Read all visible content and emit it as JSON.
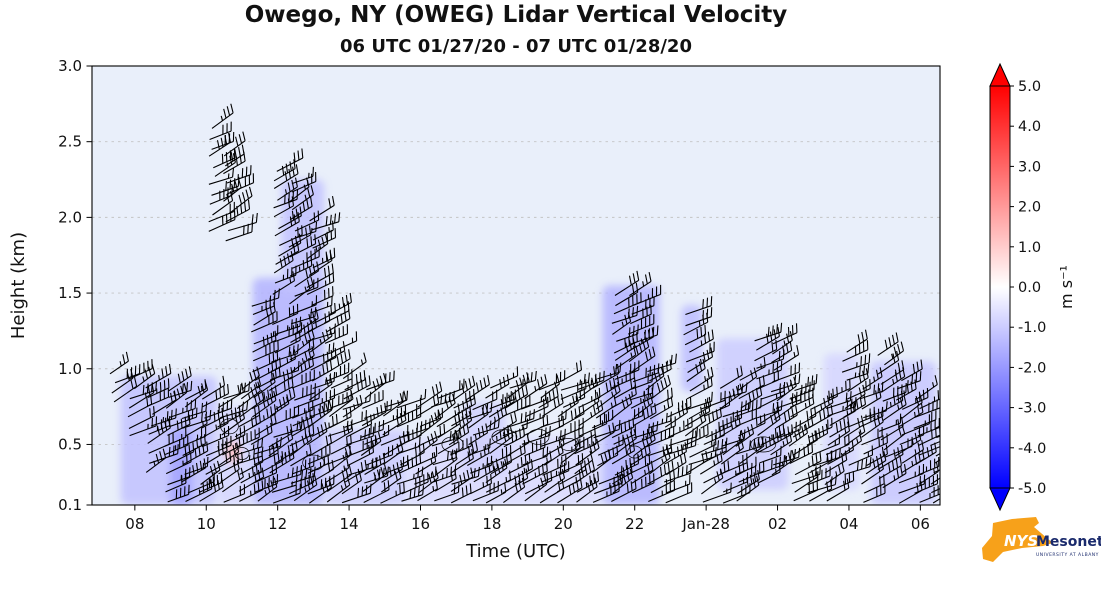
{
  "title": "Owego, NY (OWEG) Lidar Vertical Velocity",
  "subtitle": "06 UTC 01/27/20 - 07 UTC 01/28/20",
  "colors": {
    "plot_bg": "#e9effa",
    "barb": "#000000",
    "grid": "#c4c4c4",
    "frame": "#000000",
    "colorbar_max": "#ff0000",
    "colorbar_mid": "#ffffff",
    "colorbar_min": "#0000ff",
    "logo_orange": "#f7a11a",
    "logo_navy": "#1a2a6c"
  },
  "chart_data": {
    "type": "heatmap",
    "title": "Owego, NY (OWEG) Lidar Vertical Velocity",
    "subtitle": "06 UTC 01/27/20 - 07 UTC 01/28/20",
    "xlabel": "Time (UTC)",
    "ylabel": "Height (km)",
    "x_range_hours": [
      6.8,
      30.55
    ],
    "y_range": [
      0.1,
      3.0
    ],
    "x_ticks": [
      {
        "hour": 8,
        "label": "08"
      },
      {
        "hour": 10,
        "label": "10"
      },
      {
        "hour": 12,
        "label": "12"
      },
      {
        "hour": 14,
        "label": "14"
      },
      {
        "hour": 16,
        "label": "16"
      },
      {
        "hour": 18,
        "label": "18"
      },
      {
        "hour": 20,
        "label": "20"
      },
      {
        "hour": 22,
        "label": "22"
      },
      {
        "hour": 24,
        "label": "Jan-28"
      },
      {
        "hour": 26,
        "label": "02"
      },
      {
        "hour": 28,
        "label": "04"
      },
      {
        "hour": 30,
        "label": "06"
      }
    ],
    "y_ticks": [
      {
        "value": 3.0,
        "label": "3.0"
      },
      {
        "value": 2.5,
        "label": "2.5"
      },
      {
        "value": 2.0,
        "label": "2.0"
      },
      {
        "value": 1.5,
        "label": "1.5"
      },
      {
        "value": 1.0,
        "label": "1.0"
      },
      {
        "value": 0.5,
        "label": "0.5"
      },
      {
        "value": 0.1,
        "label": "0.1"
      }
    ],
    "colorbar": {
      "label": "m s⁻¹",
      "min": -5.0,
      "max": 5.0,
      "ticks": [
        {
          "value": 5.0,
          "label": "5.0"
        },
        {
          "value": 4.0,
          "label": "4.0"
        },
        {
          "value": 3.0,
          "label": "3.0"
        },
        {
          "value": 2.0,
          "label": "2.0"
        },
        {
          "value": 1.0,
          "label": "1.0"
        },
        {
          "value": 0.0,
          "label": "0.0"
        },
        {
          "value": -1.0,
          "label": "-1.0"
        },
        {
          "value": -2.0,
          "label": "-2.0"
        },
        {
          "value": -3.0,
          "label": "-3.0"
        },
        {
          "value": -4.0,
          "label": "-4.0"
        },
        {
          "value": -5.0,
          "label": "-5.0"
        }
      ]
    },
    "shading_regions": [
      {
        "t0": 7.6,
        "t1": 10.3,
        "h0": 0.1,
        "h1": 0.95,
        "v": -1.2
      },
      {
        "t0": 9.0,
        "t1": 9.6,
        "h0": 0.1,
        "h1": 0.6,
        "v": -1.8
      },
      {
        "t0": 10.3,
        "t1": 11.3,
        "h0": 0.1,
        "h1": 0.75,
        "v": -0.8
      },
      {
        "t0": 11.3,
        "t1": 13.3,
        "h0": 0.1,
        "h1": 1.6,
        "v": -1.5
      },
      {
        "t0": 12.1,
        "t1": 13.3,
        "h0": 1.5,
        "h1": 2.25,
        "v": -1.2
      },
      {
        "t0": 13.3,
        "t1": 15.6,
        "h0": 0.1,
        "h1": 0.6,
        "v": -1.0
      },
      {
        "t0": 15.6,
        "t1": 21.1,
        "h0": 0.1,
        "h1": 0.55,
        "v": -0.7
      },
      {
        "t0": 17.2,
        "t1": 18.4,
        "h0": 0.3,
        "h1": 0.78,
        "v": -0.9
      },
      {
        "t0": 21.1,
        "t1": 22.7,
        "h0": 0.1,
        "h1": 1.55,
        "v": -1.5
      },
      {
        "t0": 23.3,
        "t1": 23.9,
        "h0": 0.85,
        "h1": 1.42,
        "v": -1.3
      },
      {
        "t0": 24.3,
        "t1": 26.3,
        "h0": 0.2,
        "h1": 1.2,
        "v": -1.0
      },
      {
        "t0": 27.3,
        "t1": 28.3,
        "h0": 0.2,
        "h1": 1.1,
        "v": -0.8
      },
      {
        "t0": 28.6,
        "t1": 30.45,
        "h0": 0.1,
        "h1": 1.05,
        "v": -1.1
      },
      {
        "t0": 10.55,
        "t1": 10.95,
        "h0": 0.38,
        "h1": 0.52,
        "v": 1.2
      }
    ],
    "barb_columns": [
      {
        "t": 7.4,
        "h0": 0.78,
        "h1": 1.02
      },
      {
        "t": 7.9,
        "h0": 0.55,
        "h1": 0.97
      },
      {
        "t": 8.4,
        "h0": 0.32,
        "h1": 0.92
      },
      {
        "t": 8.9,
        "h0": 0.12,
        "h1": 0.88
      },
      {
        "t": 9.4,
        "h0": 0.12,
        "h1": 0.86
      },
      {
        "t": 9.9,
        "h0": 0.12,
        "h1": 0.82
      },
      {
        "t": 10.15,
        "h0": 1.9,
        "h1": 2.62
      },
      {
        "t": 10.4,
        "h0": 0.12,
        "h1": 0.86
      },
      {
        "t": 10.55,
        "h0": 1.85,
        "h1": 2.45
      },
      {
        "t": 10.9,
        "h0": 0.12,
        "h1": 0.9
      },
      {
        "t": 11.35,
        "h0": 0.12,
        "h1": 1.48
      },
      {
        "t": 11.85,
        "h0": 0.12,
        "h1": 1.35
      },
      {
        "t": 11.95,
        "h0": 1.5,
        "h1": 2.32
      },
      {
        "t": 12.4,
        "h0": 0.12,
        "h1": 2.28
      },
      {
        "t": 12.9,
        "h0": 0.12,
        "h1": 2.0
      },
      {
        "t": 13.4,
        "h0": 0.12,
        "h1": 1.42
      },
      {
        "t": 13.9,
        "h0": 0.12,
        "h1": 0.97
      },
      {
        "t": 14.4,
        "h0": 0.12,
        "h1": 0.88
      },
      {
        "t": 14.9,
        "h0": 0.12,
        "h1": 0.8
      },
      {
        "t": 15.4,
        "h0": 0.12,
        "h1": 0.78
      },
      {
        "t": 15.9,
        "h0": 0.12,
        "h1": 0.8
      },
      {
        "t": 16.4,
        "h0": 0.12,
        "h1": 0.85
      },
      {
        "t": 16.9,
        "h0": 0.12,
        "h1": 0.82
      },
      {
        "t": 17.4,
        "h0": 0.12,
        "h1": 0.86
      },
      {
        "t": 17.9,
        "h0": 0.12,
        "h1": 0.9
      },
      {
        "t": 18.4,
        "h0": 0.12,
        "h1": 0.9
      },
      {
        "t": 18.9,
        "h0": 0.12,
        "h1": 0.86
      },
      {
        "t": 19.4,
        "h0": 0.12,
        "h1": 0.9
      },
      {
        "t": 19.9,
        "h0": 0.12,
        "h1": 0.95
      },
      {
        "t": 20.4,
        "h0": 0.12,
        "h1": 0.92
      },
      {
        "t": 20.9,
        "h0": 0.12,
        "h1": 0.97
      },
      {
        "t": 21.4,
        "h0": 0.12,
        "h1": 1.52
      },
      {
        "t": 21.9,
        "h0": 0.18,
        "h1": 1.5
      },
      {
        "t": 22.4,
        "h0": 0.12,
        "h1": 1.02
      },
      {
        "t": 22.9,
        "h0": 0.12,
        "h1": 0.72
      },
      {
        "t": 23.45,
        "h0": 0.3,
        "h1": 1.36
      },
      {
        "t": 23.9,
        "h0": 0.12,
        "h1": 0.76
      },
      {
        "t": 24.4,
        "h0": 0.12,
        "h1": 0.9
      },
      {
        "t": 24.9,
        "h0": 0.12,
        "h1": 0.96
      },
      {
        "t": 25.45,
        "h0": 0.25,
        "h1": 1.22
      },
      {
        "t": 25.9,
        "h0": 0.3,
        "h1": 1.18
      },
      {
        "t": 26.4,
        "h0": 0.12,
        "h1": 0.92
      },
      {
        "t": 26.9,
        "h0": 0.12,
        "h1": 0.8
      },
      {
        "t": 27.4,
        "h0": 0.12,
        "h1": 0.86
      },
      {
        "t": 27.9,
        "h0": 0.3,
        "h1": 1.16
      },
      {
        "t": 28.4,
        "h0": 0.12,
        "h1": 0.92
      },
      {
        "t": 28.9,
        "h0": 0.22,
        "h1": 1.1
      },
      {
        "t": 29.4,
        "h0": 0.12,
        "h1": 0.97
      },
      {
        "t": 29.9,
        "h0": 0.12,
        "h1": 0.85
      },
      {
        "t": 30.35,
        "h0": 0.12,
        "h1": 0.62
      }
    ],
    "contour_ellipses": [
      {
        "t": 10.65,
        "h": 0.62,
        "rt": 0.25,
        "rh": 0.05
      },
      {
        "t": 11.0,
        "h": 0.44,
        "rt": 0.2,
        "rh": 0.04
      },
      {
        "t": 13.0,
        "h": 0.38,
        "rt": 0.3,
        "rh": 0.05
      },
      {
        "t": 16.9,
        "h": 0.5,
        "rt": 0.3,
        "rh": 0.05
      },
      {
        "t": 18.35,
        "h": 0.55,
        "rt": 0.35,
        "rh": 0.05
      },
      {
        "t": 19.3,
        "h": 0.55,
        "rt": 0.3,
        "rh": 0.05
      },
      {
        "t": 20.15,
        "h": 0.5,
        "rt": 0.25,
        "rh": 0.04
      },
      {
        "t": 22.0,
        "h": 0.45,
        "rt": 0.2,
        "rh": 0.04
      },
      {
        "t": 25.6,
        "h": 0.5,
        "rt": 0.35,
        "rh": 0.05
      }
    ]
  },
  "logo": {
    "text_nys": "NYS",
    "text_mesonet": "Mesonet",
    "subtext": "UNIVERSITY AT ALBANY"
  }
}
